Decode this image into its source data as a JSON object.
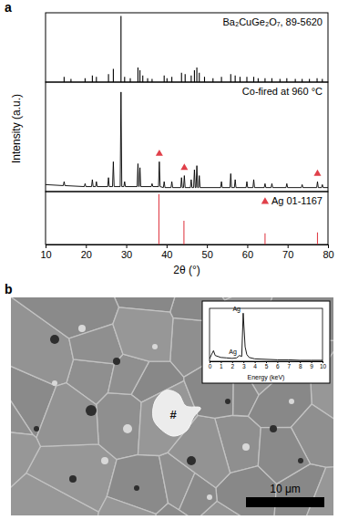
{
  "chart_data": [
    {
      "type": "stick",
      "title": "Ba₂CuGe₂O₇, 89-5620",
      "color": "#000000",
      "x": [
        14.6,
        16.3,
        19.8,
        21.6,
        22.6,
        25.6,
        26.8,
        28.7,
        29.6,
        31.0,
        32.9,
        33.4,
        34.1,
        35.3,
        36.4,
        39.4,
        40.1,
        41.3,
        43.7,
        44.6,
        46.1,
        46.9,
        47.5,
        48.1,
        49.4,
        51.5,
        53.6,
        55.9,
        57.0,
        58.2,
        59.9,
        61.6,
        62.7,
        64.4,
        66.1,
        68.1,
        69.8,
        71.9,
        73.6,
        75.4,
        77.3,
        78.6
      ],
      "values": [
        8,
        5,
        6,
        10,
        8,
        12,
        20,
        100,
        8,
        6,
        22,
        18,
        10,
        6,
        5,
        10,
        6,
        8,
        14,
        12,
        10,
        18,
        22,
        14,
        8,
        6,
        8,
        12,
        10,
        8,
        8,
        8,
        6,
        6,
        6,
        5,
        6,
        5,
        5,
        5,
        6,
        5
      ],
      "xlim": [
        10,
        80
      ],
      "ylim": [
        0,
        105
      ],
      "tick_labels": false
    },
    {
      "type": "line",
      "title": "Co-fired at 960 °C",
      "ylabel": "Intensity (a.u.)",
      "xlim": [
        10,
        80
      ],
      "ylim": [
        0,
        110
      ],
      "tick_labels": false,
      "series": [
        {
          "type": "line",
          "color": "#000000",
          "x": [
            10,
            14.4,
            14.6,
            14.8,
            19.6,
            19.8,
            20.0,
            21.4,
            21.6,
            21.8,
            22.4,
            22.6,
            22.8,
            25.4,
            25.6,
            25.8,
            26.6,
            26.8,
            27.0,
            28.5,
            28.7,
            28.9,
            29.4,
            29.6,
            29.8,
            32.7,
            32.9,
            33.1,
            33.2,
            33.4,
            33.6,
            36.2,
            36.4,
            36.6,
            38.0,
            38.2,
            38.4,
            39.2,
            39.4,
            39.6,
            41.1,
            41.3,
            41.5,
            43.5,
            43.7,
            43.9,
            44.2,
            44.4,
            44.6,
            45.9,
            46.1,
            46.3,
            46.7,
            46.9,
            47.1,
            47.3,
            47.5,
            47.7,
            47.9,
            48.1,
            48.3,
            53.4,
            53.6,
            53.8,
            55.7,
            55.9,
            56.1,
            56.8,
            57.0,
            57.2,
            59.7,
            59.9,
            60.1,
            61.4,
            61.6,
            61.8,
            64.2,
            64.4,
            64.6,
            65.9,
            66.1,
            66.3,
            69.6,
            69.8,
            70.0,
            73.4,
            73.6,
            73.8,
            77.2,
            77.4,
            77.6,
            78.4,
            78.6,
            78.8,
            80
          ],
          "values": [
            7,
            6,
            10,
            6,
            5,
            8,
            5,
            5,
            12,
            5,
            5,
            10,
            5,
            5,
            14,
            5,
            5,
            30,
            5,
            5,
            100,
            5,
            5,
            10,
            5,
            5,
            28,
            5,
            5,
            24,
            5,
            5,
            8,
            5,
            5,
            30,
            5,
            4,
            10,
            4,
            4,
            10,
            4,
            4,
            14,
            4,
            4,
            16,
            4,
            4,
            12,
            4,
            4,
            22,
            4,
            4,
            26,
            4,
            4,
            16,
            4,
            4,
            10,
            4,
            4,
            18,
            4,
            4,
            12,
            4,
            4,
            10,
            4,
            4,
            12,
            4,
            4,
            8,
            4,
            4,
            8,
            4,
            4,
            8,
            4,
            4,
            7,
            4,
            4,
            10,
            4,
            4,
            7,
            4,
            4
          ]
        },
        {
          "type": "scatter",
          "marker": "triangle",
          "color": "#e0404a",
          "x": [
            38.2,
            44.4,
            77.4
          ],
          "values": [
            38,
            24,
            18
          ]
        }
      ]
    },
    {
      "type": "stick",
      "title": "Ag 01-1167",
      "marker": "triangle",
      "color": "#e0404a",
      "x": [
        38.1,
        44.3,
        64.4,
        77.4
      ],
      "values": [
        100,
        47,
        22,
        24
      ],
      "xlim": [
        10,
        80
      ],
      "ylim": [
        0,
        105
      ],
      "xticks": [
        10,
        20,
        30,
        40,
        50,
        60,
        70,
        80
      ],
      "xlabel": "2θ (°)",
      "tick_labels": "x"
    },
    {
      "type": "line",
      "xlabel": "Energy (keV)",
      "color": "#000000",
      "x": [
        0,
        0.2,
        0.35,
        0.5,
        1.0,
        1.5,
        2.0,
        2.4,
        2.65,
        2.85,
        2.98,
        3.15,
        3.3,
        3.5,
        4.0,
        5,
        6,
        7,
        8,
        9,
        10
      ],
      "values": [
        5,
        15,
        22,
        12,
        8,
        7,
        6,
        7,
        12,
        10,
        100,
        30,
        14,
        8,
        5,
        4,
        3,
        3,
        2,
        2,
        2
      ],
      "xlim": [
        0,
        10
      ],
      "ylim": [
        0,
        110
      ],
      "xticks": [
        0,
        1,
        2,
        3,
        4,
        5,
        6,
        7,
        8,
        9,
        10
      ],
      "tick_labels": "x",
      "annotations": [
        {
          "text": "Ag",
          "x": 2.65,
          "y": 12
        },
        {
          "text": "Ag",
          "x": 2.98,
          "y": 100
        }
      ]
    }
  ],
  "figure": {
    "panel_labels": [
      "a",
      "b"
    ],
    "image": {
      "annotations": [
        "#"
      ],
      "scale_bar": "10 μm"
    }
  }
}
